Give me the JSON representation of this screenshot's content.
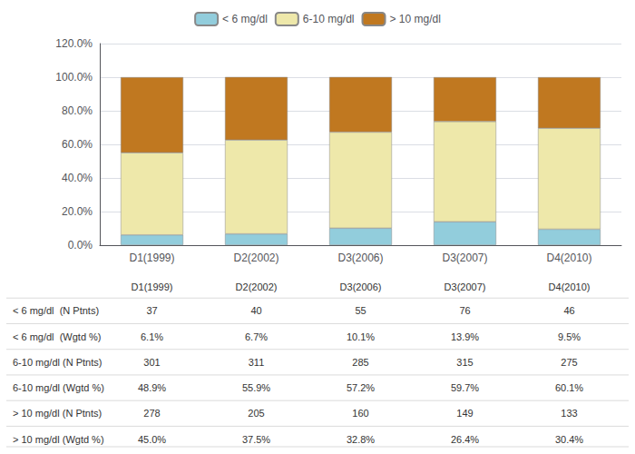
{
  "chart_data": {
    "type": "bar",
    "categories": [
      "D1(1999)",
      "D2(2002)",
      "D3(2006)",
      "D3(2007)",
      "D4(2010)"
    ],
    "series": [
      {
        "name": "< 6 mg/dl",
        "color": "#92CDDC",
        "values": [
          6.1,
          6.7,
          10.1,
          13.9,
          9.5
        ]
      },
      {
        "name": "6-10 mg/dl",
        "color": "#EEE8AA",
        "values": [
          48.9,
          55.9,
          57.2,
          59.7,
          60.1
        ]
      },
      {
        "name": "> 10 mg/dl",
        "color": "#C07820",
        "values": [
          45.0,
          37.5,
          32.8,
          26.4,
          30.4
        ]
      }
    ],
    "stacked": true,
    "ylim": [
      0,
      120
    ],
    "yticks": [
      {
        "value": 0,
        "label": "0.0%"
      },
      {
        "value": 20,
        "label": "20.0%"
      },
      {
        "value": 40,
        "label": "40.0%"
      },
      {
        "value": 60,
        "label": "60.0%"
      },
      {
        "value": 80,
        "label": "80.0%"
      },
      {
        "value": 100,
        "label": "100.0%"
      },
      {
        "value": 120,
        "label": "120.0%"
      }
    ],
    "grid": true,
    "legend": "top",
    "table_rows": [
      [
        "< 6 mg/dl  (N Ptnts)",
        "37",
        "40",
        "55",
        "76",
        "46"
      ],
      [
        "< 6 mg/dl  (Wgtd %)",
        "6.1%",
        "6.7%",
        "10.1%",
        "13.9%",
        "9.5%"
      ],
      [
        "6-10 mg/dl (N Ptnts)",
        "301",
        "311",
        "285",
        "315",
        "275"
      ],
      [
        "6-10 mg/dl (Wgtd %)",
        "48.9%",
        "55.9%",
        "57.2%",
        "59.7%",
        "60.1%"
      ],
      [
        "> 10 mg/dl (N Ptnts)",
        "278",
        "205",
        "160",
        "149",
        "133"
      ],
      [
        "> 10 mg/dl (Wgtd %)",
        "45.0%",
        "37.5%",
        "32.8%",
        "26.4%",
        "30.4%"
      ]
    ]
  }
}
